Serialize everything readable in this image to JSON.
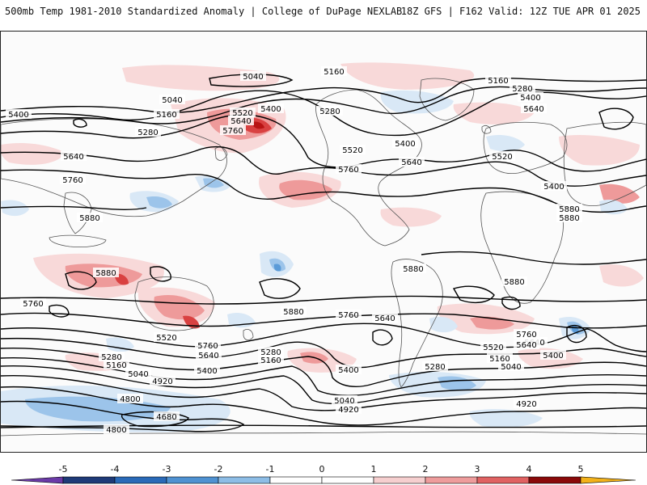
{
  "header": {
    "left": "500mb Temp 1981-2010 Standardized Anomaly | College of DuPage NEXLAB",
    "right": "18Z GFS | F162 Valid: 12Z TUE APR 01 2025"
  },
  "colorbar": {
    "ticks": [
      "-5",
      "-4",
      "-3",
      "-2",
      "-1",
      "0",
      "1",
      "2",
      "3",
      "4",
      "5"
    ],
    "colors": [
      "#6b3aa8",
      "#1e3a78",
      "#2a6ab8",
      "#4f92d2",
      "#8dbde6",
      "#c6dcf2",
      "#ffffff",
      "#ffffff",
      "#f6cfcf",
      "#ee9c9c",
      "#e06262",
      "#c92a2a",
      "#8a0a0a",
      "#f3b21b"
    ]
  },
  "map": {
    "contour_labels": [
      "5040",
      "5160",
      "5160",
      "5280",
      "5400",
      "5040",
      "5400",
      "5160",
      "5280",
      "5520",
      "5640",
      "5760",
      "5400",
      "5280",
      "5640",
      "5520",
      "5400",
      "5640",
      "5520",
      "5760",
      "5760",
      "5880",
      "5880",
      "5880",
      "5640",
      "5400",
      "5880",
      "5880",
      "5880",
      "5760",
      "5760",
      "5880",
      "5640",
      "5760",
      "5640",
      "5640",
      "5520",
      "5760",
      "5640",
      "5400",
      "5280",
      "5160",
      "5280",
      "5160",
      "5040",
      "5520",
      "5400",
      "5280",
      "5160",
      "5040",
      "5400",
      "4920",
      "5040",
      "4920",
      "4800",
      "4680",
      "4920",
      "4800"
    ],
    "colors": {
      "warm_light": "#f8d9d9",
      "warm_mid": "#ee9a9a",
      "warm_strong": "#d94141",
      "warm_deep": "#b81414",
      "cool_light": "#d9e8f6",
      "cool_mid": "#9cc4ea",
      "cool_strong": "#5b9bd8",
      "cool_deep": "#2d6cc0",
      "coast": "#555555",
      "contour": "#000000"
    }
  }
}
